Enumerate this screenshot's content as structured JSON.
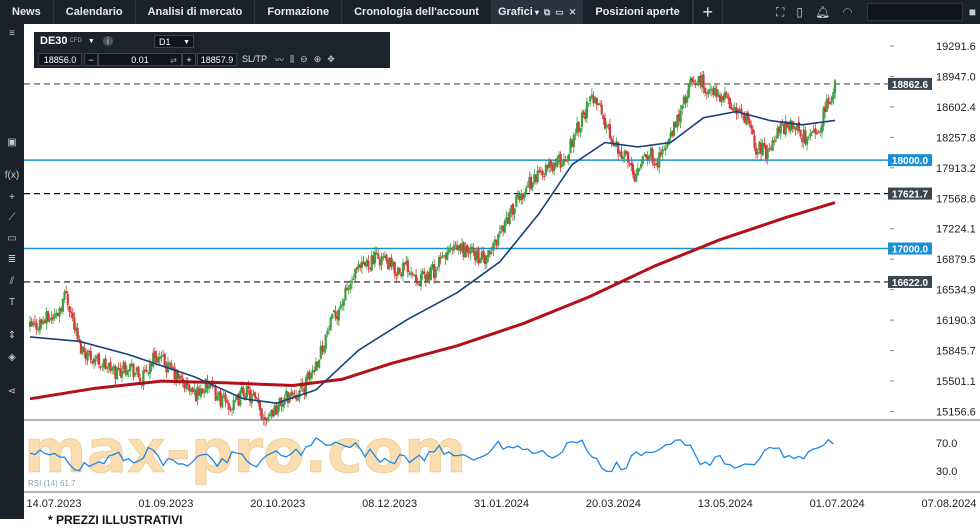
{
  "nav": {
    "tabs": [
      "News",
      "Calendario",
      "Analisi di mercato",
      "Formazione",
      "Cronologia dell'account"
    ],
    "active_tab": "Grafici",
    "after_tab": "Posizioni aperte",
    "plus": "+",
    "icons": [
      "fullscreen-icon",
      "layout-icon",
      "bell-icon",
      "wifi-icon",
      "close-icon"
    ]
  },
  "instrument": {
    "symbol": "DE30",
    "type": "CFD",
    "timeframe": "D1",
    "sell": "18856.0",
    "lot": "0.01",
    "buy": "18857.9",
    "minus": "−",
    "plus": "+",
    "sltp": "SL/TP"
  },
  "chart_data": {
    "type": "candlestick",
    "symbol": "DE30",
    "timeframe": "D1",
    "y_ticks": [
      "19291.6",
      "18947.0",
      "18602.4",
      "18257.8",
      "17913.2",
      "17568.6",
      "17224.1",
      "16879.5",
      "16534.9",
      "16190.3",
      "15845.7",
      "15501.1",
      "15156.6"
    ],
    "ylim": [
      15060,
      19450
    ],
    "x_ticks": [
      "14.07.2023",
      "01.09.2023",
      "20.10.2023",
      "08.12.2023",
      "31.01.2024",
      "20.03.2024",
      "13.05.2024",
      "01.07.2024",
      "07.08.2024"
    ],
    "price_labels": [
      {
        "label": "18862.6",
        "value": 18862.6,
        "style": "dashed",
        "color": "#555555",
        "tag": "#3b4650"
      },
      {
        "label": "18000.0",
        "value": 18000.0,
        "style": "solid",
        "color": "#1a8fd6",
        "tag": "#1a8fd6"
      },
      {
        "label": "17621.7",
        "value": 17621.7,
        "style": "dashed",
        "color": "#111111",
        "tag": "#3b4650"
      },
      {
        "label": "17000.0",
        "value": 17000.0,
        "style": "solid",
        "color": "#1a8fd6",
        "tag": "#1a8fd6"
      },
      {
        "label": "16622.0",
        "value": 16622.0,
        "style": "dashed",
        "color": "#111111",
        "tag": "#3b4650"
      }
    ],
    "rsi": {
      "label": "RSI (14) 61.7",
      "levels": [
        "70.0",
        "30.0"
      ]
    },
    "series_colors": {
      "up": "#3aa040",
      "down": "#d43a3a",
      "ma_fast": "#17407f",
      "ma_slow": "#b3111a",
      "rsi": "#1e88e5"
    },
    "close_path": [
      [
        0,
        16100
      ],
      [
        10,
        16200
      ],
      [
        16,
        16250
      ],
      [
        22,
        16500
      ],
      [
        26,
        16200
      ],
      [
        30,
        15900
      ],
      [
        36,
        15800
      ],
      [
        44,
        15700
      ],
      [
        52,
        15600
      ],
      [
        60,
        15700
      ],
      [
        68,
        15500
      ],
      [
        76,
        15800
      ],
      [
        84,
        15650
      ],
      [
        92,
        15500
      ],
      [
        100,
        15350
      ],
      [
        108,
        15450
      ],
      [
        116,
        15300
      ],
      [
        124,
        15200
      ],
      [
        130,
        15400
      ],
      [
        136,
        15300
      ],
      [
        142,
        15100
      ],
      [
        150,
        15200
      ],
      [
        158,
        15350
      ],
      [
        166,
        15400
      ],
      [
        174,
        15700
      ],
      [
        182,
        16100
      ],
      [
        190,
        16400
      ],
      [
        198,
        16700
      ],
      [
        206,
        16850
      ],
      [
        214,
        16900
      ],
      [
        222,
        16750
      ],
      [
        230,
        16800
      ],
      [
        238,
        16650
      ],
      [
        246,
        16750
      ],
      [
        254,
        16950
      ],
      [
        262,
        17000
      ],
      [
        270,
        16950
      ],
      [
        278,
        16850
      ],
      [
        286,
        17200
      ],
      [
        294,
        17450
      ],
      [
        302,
        17700
      ],
      [
        310,
        17850
      ],
      [
        318,
        17950
      ],
      [
        326,
        18000
      ],
      [
        332,
        18350
      ],
      [
        338,
        18550
      ],
      [
        344,
        18750
      ],
      [
        350,
        18400
      ],
      [
        356,
        18200
      ],
      [
        362,
        18050
      ],
      [
        368,
        17850
      ],
      [
        374,
        18100
      ],
      [
        382,
        18000
      ],
      [
        390,
        18250
      ],
      [
        396,
        18550
      ],
      [
        402,
        18850
      ],
      [
        408,
        18900
      ],
      [
        414,
        18750
      ],
      [
        420,
        18750
      ],
      [
        428,
        18600
      ],
      [
        436,
        18450
      ],
      [
        442,
        18150
      ],
      [
        448,
        18100
      ],
      [
        456,
        18350
      ],
      [
        464,
        18400
      ],
      [
        472,
        18250
      ],
      [
        480,
        18350
      ],
      [
        486,
        18650
      ],
      [
        490,
        18860
      ]
    ],
    "ma_fast_path": [
      [
        0,
        16000
      ],
      [
        30,
        15950
      ],
      [
        60,
        15800
      ],
      [
        100,
        15550
      ],
      [
        130,
        15300
      ],
      [
        150,
        15250
      ],
      [
        174,
        15400
      ],
      [
        200,
        15850
      ],
      [
        230,
        16200
      ],
      [
        260,
        16500
      ],
      [
        286,
        16850
      ],
      [
        310,
        17400
      ],
      [
        330,
        17950
      ],
      [
        350,
        18200
      ],
      [
        370,
        18150
      ],
      [
        390,
        18200
      ],
      [
        410,
        18480
      ],
      [
        430,
        18550
      ],
      [
        450,
        18450
      ],
      [
        470,
        18400
      ],
      [
        490,
        18450
      ]
    ],
    "ma_slow_path": [
      [
        0,
        15300
      ],
      [
        40,
        15420
      ],
      [
        80,
        15500
      ],
      [
        120,
        15480
      ],
      [
        160,
        15450
      ],
      [
        190,
        15520
      ],
      [
        220,
        15700
      ],
      [
        260,
        15900
      ],
      [
        300,
        16150
      ],
      [
        340,
        16450
      ],
      [
        380,
        16800
      ],
      [
        420,
        17100
      ],
      [
        460,
        17350
      ],
      [
        490,
        17520
      ]
    ]
  },
  "watermark": "max-pro.com",
  "footnote": "* PREZZI ILLUSTRATIVI"
}
